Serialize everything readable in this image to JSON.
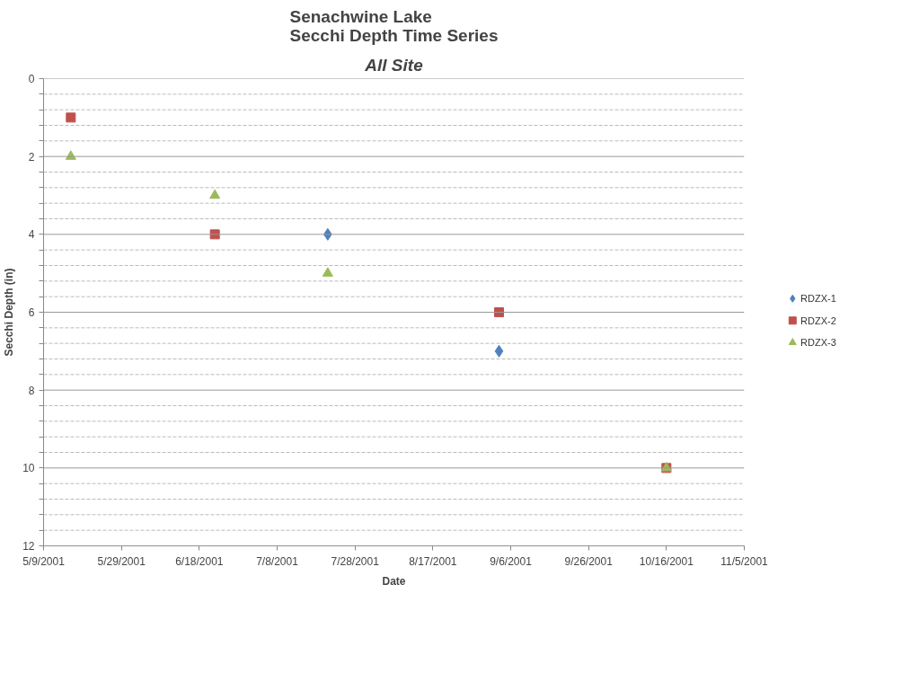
{
  "chart_data": {
    "type": "scatter",
    "title": "Senachwine Lake\nSecchi Depth Time Series",
    "subtitle": "All Site",
    "xlabel": "Date",
    "ylabel": "Secchi Depth (in)",
    "series": [
      {
        "name": "RDZX-1",
        "color": "#4f81bd",
        "marker": "diamond",
        "x": [
          "2001-07-21",
          "2001-09-03"
        ],
        "values": [
          4,
          7
        ]
      },
      {
        "name": "RDZX-2",
        "color": "#c0504d",
        "marker": "square",
        "x": [
          "2001-05-16",
          "2001-06-22",
          "2001-09-03",
          "2001-10-16"
        ],
        "values": [
          1,
          4,
          6,
          10
        ]
      },
      {
        "name": "RDZX-3",
        "color": "#9bbb59",
        "marker": "triangle",
        "x": [
          "2001-05-16",
          "2001-06-22",
          "2001-07-21",
          "2001-10-16"
        ],
        "values": [
          2,
          3,
          5,
          10
        ]
      }
    ],
    "xlim": [
      "2001-05-09",
      "2001-11-05"
    ],
    "xticks": [
      {
        "value": "2001-05-09",
        "label": "5/9/2001"
      },
      {
        "value": "2001-05-29",
        "label": "5/29/2001"
      },
      {
        "value": "2001-06-18",
        "label": "6/18/2001"
      },
      {
        "value": "2001-07-08",
        "label": "7/8/2001"
      },
      {
        "value": "2001-07-28",
        "label": "7/28/2001"
      },
      {
        "value": "2001-08-17",
        "label": "8/17/2001"
      },
      {
        "value": "2001-09-06",
        "label": "9/6/2001"
      },
      {
        "value": "2001-09-26",
        "label": "9/26/2001"
      },
      {
        "value": "2001-10-16",
        "label": "10/16/2001"
      },
      {
        "value": "2001-11-05",
        "label": "11/5/2001"
      }
    ],
    "ylim": [
      12,
      0
    ],
    "yticks": [
      0,
      {
        "value": 0.4,
        "label": null
      },
      {
        "value": 0.8,
        "label": null
      },
      {
        "value": 1.2,
        "label": null
      },
      {
        "value": 1.6,
        "label": null
      },
      2,
      {
        "value": 2.4,
        "label": null
      },
      {
        "value": 2.8,
        "label": null
      },
      {
        "value": 3.2,
        "label": null
      },
      {
        "value": 3.6,
        "label": null
      },
      4,
      {
        "value": 4.4,
        "label": null
      },
      {
        "value": 4.8,
        "label": null
      },
      {
        "value": 5.2,
        "label": null
      },
      {
        "value": 5.6,
        "label": null
      },
      6,
      {
        "value": 6.4,
        "label": null
      },
      {
        "value": 6.8,
        "label": null
      },
      {
        "value": 7.2,
        "label": null
      },
      {
        "value": 7.6,
        "label": null
      },
      8,
      {
        "value": 8.4,
        "label": null
      },
      {
        "value": 8.8,
        "label": null
      },
      {
        "value": 9.2,
        "label": null
      },
      {
        "value": 9.6,
        "label": null
      },
      10,
      {
        "value": 10.4,
        "label": null
      },
      {
        "value": 10.8,
        "label": null
      },
      {
        "value": 11.2,
        "label": null
      },
      {
        "value": 11.6,
        "label": null
      },
      12
    ],
    "grid": "y",
    "legend": "right"
  }
}
